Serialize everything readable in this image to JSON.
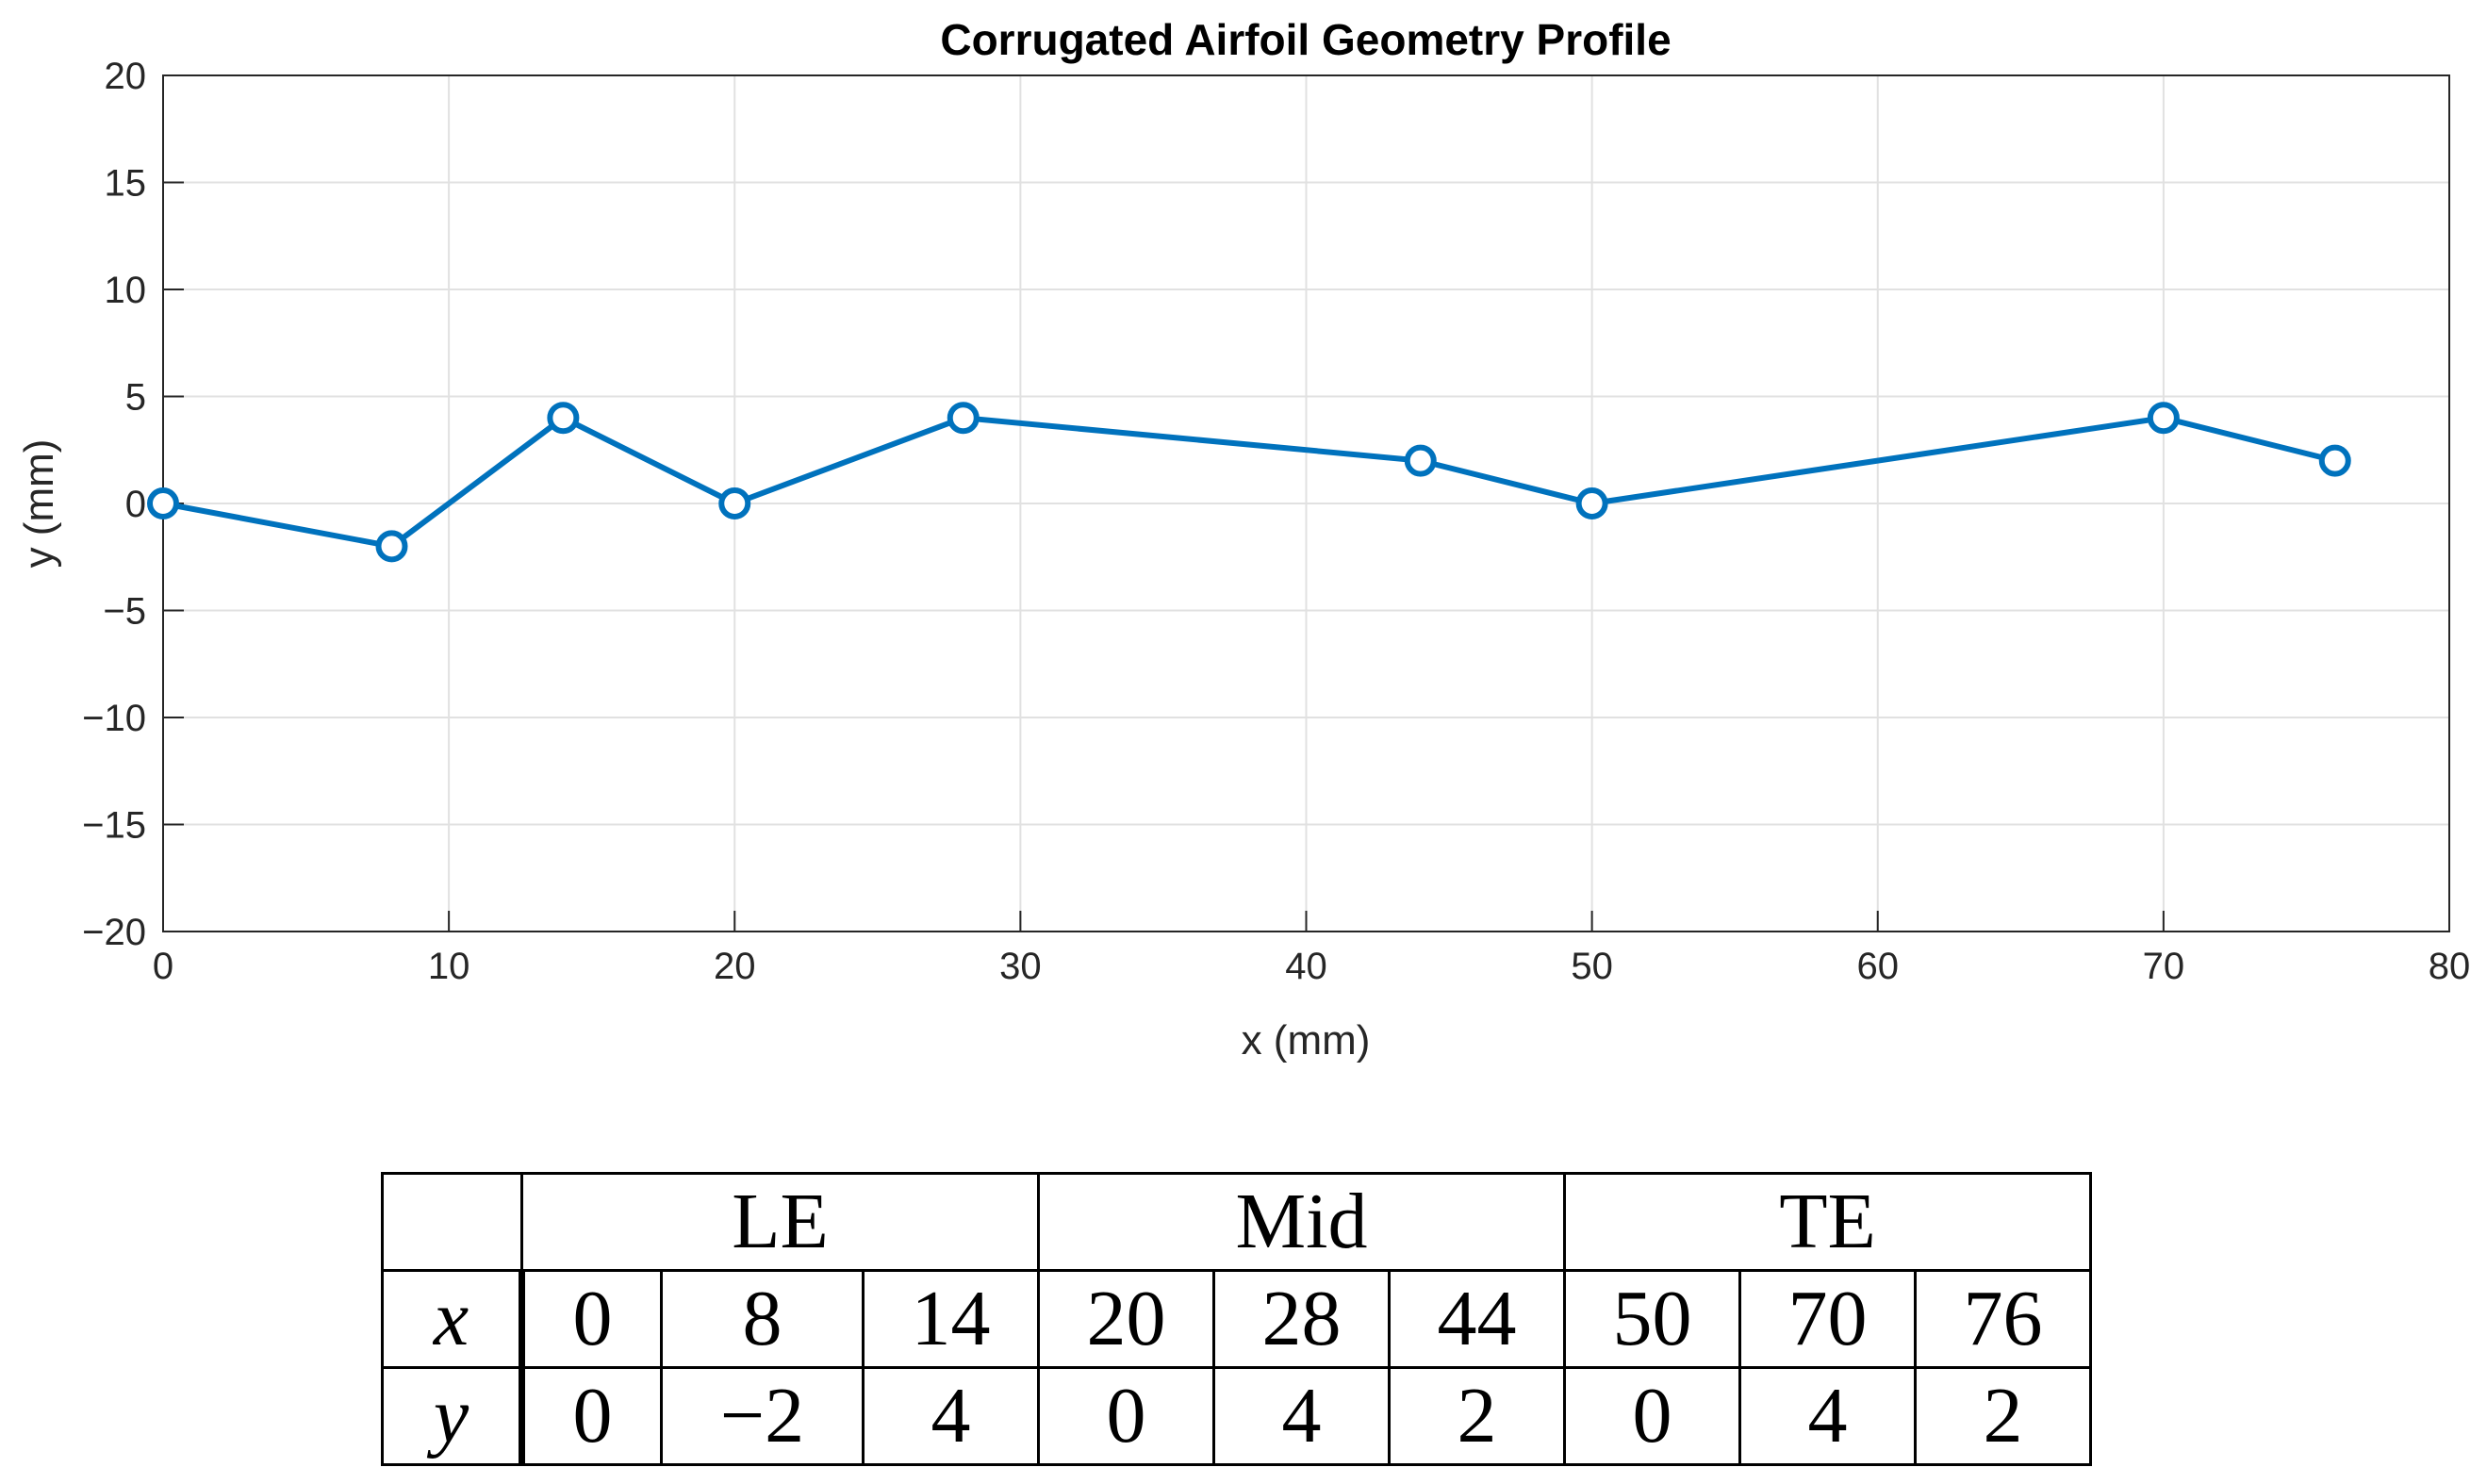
{
  "chart_data": {
    "type": "line",
    "title": "Corrugated Airfoil Geometry Profile",
    "xlabel": "x (mm)",
    "ylabel": "y (mm)",
    "xlim": [
      0,
      80
    ],
    "ylim": [
      -20,
      20
    ],
    "xticks": [
      0,
      10,
      20,
      30,
      40,
      50,
      60,
      70,
      80
    ],
    "yticks": [
      -20,
      -15,
      -10,
      -5,
      0,
      5,
      10,
      15,
      20
    ],
    "xtick_labels": [
      "0",
      "10",
      "20",
      "30",
      "40",
      "50",
      "60",
      "70",
      "80"
    ],
    "ytick_labels": [
      "−20",
      "−15",
      "−10",
      "−5",
      "0",
      "5",
      "10",
      "15",
      "20"
    ],
    "grid": true,
    "marker": "circle",
    "color": "#0072BD",
    "series": [
      {
        "name": "profile",
        "x": [
          0,
          8,
          14,
          20,
          28,
          44,
          50,
          70,
          76
        ],
        "y": [
          0,
          -2,
          4,
          0,
          4,
          2,
          0,
          4,
          2
        ]
      }
    ]
  },
  "table": {
    "groups": [
      "LE",
      "Mid",
      "TE"
    ],
    "rows": [
      {
        "label": "x",
        "values": [
          "0",
          "8",
          "14",
          "20",
          "28",
          "44",
          "50",
          "70",
          "76"
        ]
      },
      {
        "label": "y",
        "values": [
          "0",
          "−2",
          "4",
          "0",
          "4",
          "2",
          "0",
          "4",
          "2"
        ]
      }
    ]
  }
}
